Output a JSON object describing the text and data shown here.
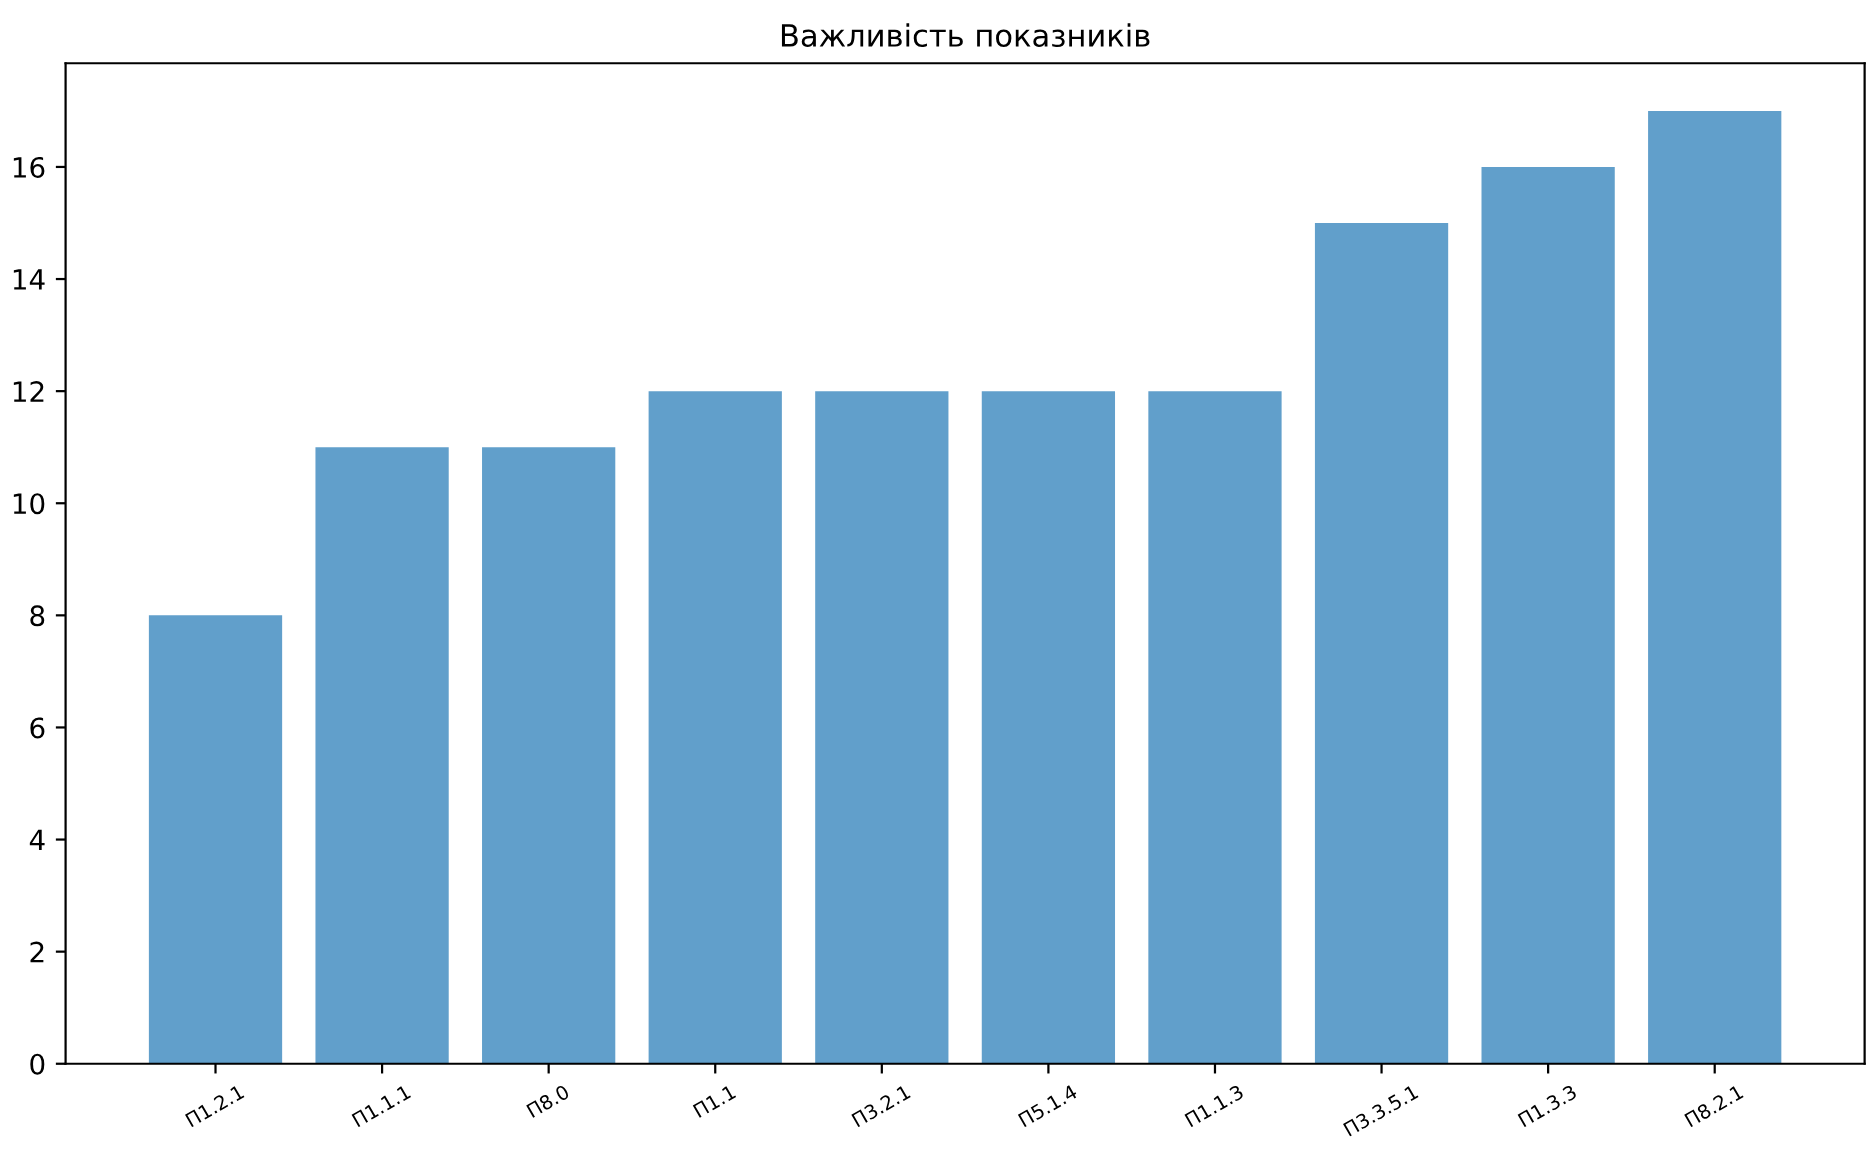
{
  "chart_data": {
    "type": "bar",
    "title": "Важливість показників",
    "categories": [
      "П1.2.1",
      "П1.1.1",
      "П8.0",
      "П1.1",
      "П3.2.1",
      "П5.1.4",
      "П1.1.3",
      "П3.3.5.1",
      "П1.3.3",
      "П8.2.1"
    ],
    "values": [
      8,
      11,
      11,
      12,
      12,
      12,
      12,
      15,
      16,
      17
    ],
    "color": "#619fcb",
    "ylim": [
      0,
      17.85
    ],
    "yticks": [
      0,
      2,
      4,
      6,
      8,
      10,
      12,
      14,
      16
    ],
    "grid": false
  }
}
